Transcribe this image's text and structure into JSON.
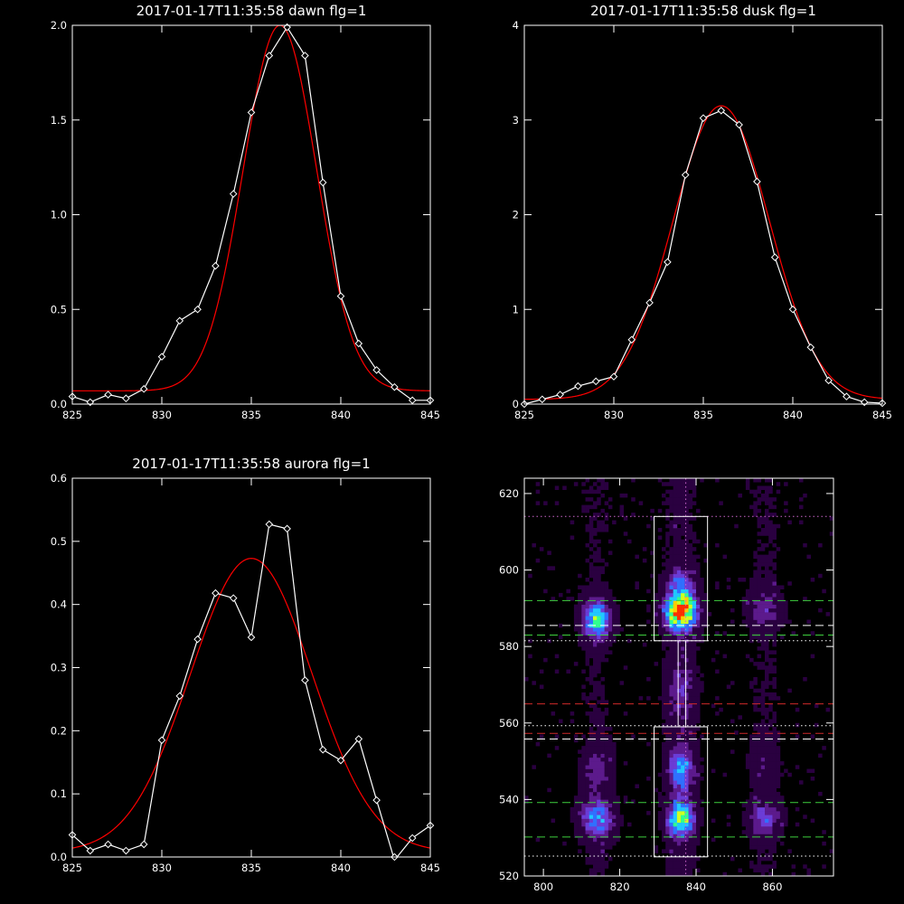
{
  "colors": {
    "background": "#000000",
    "axes": "#ffffff",
    "data_line": "#ffffff",
    "fit_line": "#ff0000",
    "green_dash": "#3ecf3e",
    "red_dash": "#d02a2a",
    "magenta_dot": "#cc66cc"
  },
  "chart_data": [
    {
      "type": "line",
      "title": "2017-01-17T11:35:58 dawn flg=1",
      "xlabel": "",
      "ylabel": "",
      "xlim": [
        825,
        845
      ],
      "ylim": [
        0,
        2.0
      ],
      "xticks": [
        825,
        830,
        835,
        840,
        845
      ],
      "xticklabels": [
        "825",
        "830",
        "835",
        "840",
        "845"
      ],
      "yticks": [
        0,
        0.5,
        1.0,
        1.5,
        2.0
      ],
      "yticklabels": [
        "0.0",
        "0.5",
        "1.0",
        "1.5",
        "2.0"
      ],
      "series": [
        {
          "role": "data",
          "marker": "diamond",
          "x": [
            825,
            826,
            827,
            828,
            829,
            830,
            831,
            832,
            833,
            834,
            835,
            836,
            837,
            838,
            839,
            840,
            841,
            842,
            843,
            844,
            845
          ],
          "y": [
            0.04,
            0.01,
            0.05,
            0.03,
            0.08,
            0.25,
            0.44,
            0.5,
            0.73,
            1.11,
            1.54,
            1.84,
            1.99,
            1.84,
            1.17,
            0.57,
            0.32,
            0.18,
            0.09,
            0.02,
            0.02
          ]
        },
        {
          "role": "fit",
          "fit": {
            "amplitude": 1.93,
            "center": 836.6,
            "sigma": 2.05,
            "offset": 0.07
          }
        }
      ]
    },
    {
      "type": "line",
      "title": "2017-01-17T11:35:58 dusk flg=1",
      "xlabel": "",
      "ylabel": "",
      "xlim": [
        825,
        845
      ],
      "ylim": [
        0,
        4
      ],
      "xticks": [
        825,
        830,
        835,
        840,
        845
      ],
      "xticklabels": [
        "825",
        "830",
        "835",
        "840",
        "845"
      ],
      "yticks": [
        0,
        1,
        2,
        3,
        4
      ],
      "yticklabels": [
        "0",
        "1",
        "2",
        "3",
        "4"
      ],
      "series": [
        {
          "role": "data",
          "marker": "diamond",
          "x": [
            825,
            826,
            827,
            828,
            829,
            830,
            831,
            832,
            833,
            834,
            835,
            836,
            837,
            838,
            839,
            840,
            841,
            842,
            843,
            844,
            845
          ],
          "y": [
            0.0,
            0.05,
            0.1,
            0.19,
            0.24,
            0.29,
            0.68,
            1.07,
            1.5,
            2.42,
            3.02,
            3.1,
            2.95,
            2.35,
            1.55,
            1.0,
            0.6,
            0.25,
            0.08,
            0.02,
            0.01
          ]
        },
        {
          "role": "fit",
          "fit": {
            "amplitude": 3.1,
            "center": 836.0,
            "sigma": 2.7,
            "offset": 0.05
          }
        }
      ]
    },
    {
      "type": "line",
      "title": "2017-01-17T11:35:58 aurora flg=1",
      "xlabel": "",
      "ylabel": "",
      "xlim": [
        825,
        845
      ],
      "ylim": [
        0,
        0.6
      ],
      "xticks": [
        825,
        830,
        835,
        840,
        845
      ],
      "xticklabels": [
        "825",
        "830",
        "835",
        "840",
        "845"
      ],
      "yticks": [
        0,
        0.1,
        0.2,
        0.3,
        0.4,
        0.5,
        0.6
      ],
      "yticklabels": [
        "0.0",
        "0.1",
        "0.2",
        "0.3",
        "0.4",
        "0.5",
        "0.6"
      ],
      "series": [
        {
          "role": "data",
          "marker": "diamond",
          "x": [
            825,
            826,
            827,
            828,
            829,
            830,
            831,
            832,
            833,
            834,
            835,
            836,
            837,
            838,
            839,
            840,
            841,
            842,
            843,
            844,
            845
          ],
          "y": [
            0.035,
            0.01,
            0.02,
            0.01,
            0.02,
            0.185,
            0.255,
            0.345,
            0.418,
            0.41,
            0.348,
            0.527,
            0.52,
            0.28,
            0.17,
            0.153,
            0.187,
            0.09,
            -0.005,
            0.03,
            0.05
          ]
        },
        {
          "role": "fit",
          "fit": {
            "amplitude": 0.465,
            "center": 835.0,
            "sigma": 3.4,
            "offset": 0.008
          }
        }
      ]
    },
    {
      "type": "heatmap",
      "title": "",
      "xlabel": "",
      "ylabel": "",
      "xlim": [
        795,
        876
      ],
      "ylim": [
        520,
        624
      ],
      "xticks": [
        800,
        820,
        840,
        860
      ],
      "xticklabels": [
        "800",
        "820",
        "840",
        "860"
      ],
      "yticks": [
        520,
        540,
        560,
        580,
        600,
        620
      ],
      "yticklabels": [
        "520",
        "540",
        "560",
        "580",
        "600",
        "620"
      ],
      "colormap": [
        "#000000",
        "#2a0040",
        "#5c1a8c",
        "#6b3cd6",
        "#3070ff",
        "#20c8ff",
        "#30ff90",
        "#d0ff20",
        "#ffd000",
        "#ff3000"
      ],
      "blobs": [
        {
          "x": 814,
          "y": 587,
          "sx": 2.5,
          "sy": 3.5,
          "peak": 0.58
        },
        {
          "x": 836,
          "y": 589,
          "sx": 2.8,
          "sy": 3.2,
          "peak": 1.0
        },
        {
          "x": 836,
          "y": 596,
          "sx": 2.6,
          "sy": 3.0,
          "peak": 0.3
        },
        {
          "x": 836,
          "y": 568,
          "sx": 2.5,
          "sy": 6.0,
          "peak": 0.18
        },
        {
          "x": 858,
          "y": 590,
          "sx": 3.0,
          "sy": 3.5,
          "peak": 0.2
        },
        {
          "x": 814,
          "y": 535,
          "sx": 3.0,
          "sy": 3.5,
          "peak": 0.45
        },
        {
          "x": 836,
          "y": 535,
          "sx": 2.3,
          "sy": 3.2,
          "peak": 0.68
        },
        {
          "x": 836,
          "y": 548,
          "sx": 2.3,
          "sy": 4.0,
          "peak": 0.42
        },
        {
          "x": 858,
          "y": 535,
          "sx": 2.8,
          "sy": 3.2,
          "peak": 0.3
        },
        {
          "x": 814,
          "y": 548,
          "sx": 2.5,
          "sy": 4.0,
          "peak": 0.2
        },
        {
          "x": 858,
          "y": 550,
          "sx": 2.5,
          "sy": 4.0,
          "peak": 0.12
        }
      ],
      "boxes": [
        {
          "x0": 829,
          "x1": 843,
          "y0": 581.5,
          "y1": 614
        },
        {
          "x0": 829,
          "x1": 843,
          "y0": 525,
          "y1": 559
        }
      ],
      "connector_x": [
        835.3,
        837.3
      ],
      "connector_y": [
        559,
        581.5
      ],
      "vertical_dotted_x": 837.3,
      "horizontal_lines": [
        {
          "y": 614,
          "style": "dotted",
          "color": "magenta_dot"
        },
        {
          "y": 592,
          "style": "dashed",
          "color": "green_dash"
        },
        {
          "y": 585.5,
          "style": "dashed",
          "color": "data_line"
        },
        {
          "y": 583,
          "style": "dashed",
          "color": "green_dash"
        },
        {
          "y": 581.5,
          "style": "dotted",
          "color": "data_line"
        },
        {
          "y": 565,
          "style": "dashed",
          "color": "red_dash"
        },
        {
          "y": 559.3,
          "style": "dotted",
          "color": "data_line"
        },
        {
          "y": 557.3,
          "style": "dashed",
          "color": "red_dash"
        },
        {
          "y": 555.8,
          "style": "dashed",
          "color": "data_line"
        },
        {
          "y": 539.2,
          "style": "dashed",
          "color": "green_dash"
        },
        {
          "y": 530.2,
          "style": "dashed",
          "color": "green_dash"
        },
        {
          "y": 525.2,
          "style": "dotted",
          "color": "data_line"
        }
      ]
    }
  ]
}
